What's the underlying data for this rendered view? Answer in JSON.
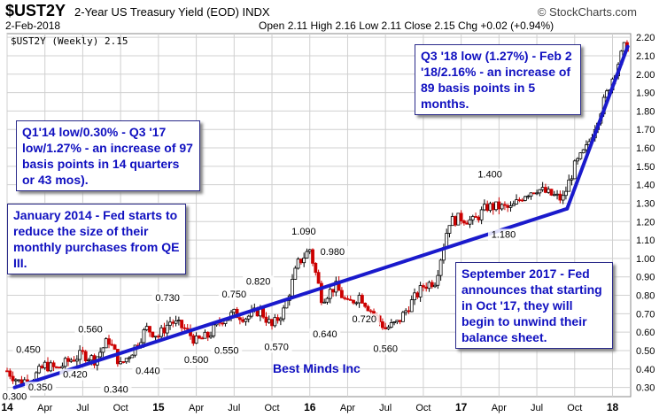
{
  "header": {
    "symbol": "$UST2Y",
    "subtitle": "2-Year US Treasury Yield (EOD)  INDX",
    "brand": "© StockCharts.com",
    "date": "2-Feb-2018",
    "ohlc": "Open 2.11  High 2.16  Low 2.11  Close 2.15  Chg +0.02 (+0.94%)"
  },
  "chart_data": {
    "type": "candlestick",
    "title": "$UST2Y (Weekly) 2.15",
    "x_tick_labels": [
      "14",
      "Apr",
      "Jul",
      "Oct",
      "15",
      "Apr",
      "Jul",
      "Oct",
      "16",
      "Apr",
      "Jul",
      "Oct",
      "17",
      "Apr",
      "Jul",
      "Oct",
      "18"
    ],
    "x_range": [
      "2014-01",
      "2018-02"
    ],
    "y_range": [
      0.25,
      2.22
    ],
    "y_ticks": [
      0.3,
      0.4,
      0.5,
      0.6,
      0.7,
      0.8,
      0.9,
      1.0,
      1.1,
      1.2,
      1.3,
      1.4,
      1.5,
      1.6,
      1.7,
      1.8,
      1.9,
      2.0,
      2.1,
      2.2
    ],
    "grid": true,
    "axis_side": "right",
    "series": {
      "x": [
        2014.0,
        2014.08,
        2014.17,
        2014.25,
        2014.33,
        2014.42,
        2014.5,
        2014.58,
        2014.67,
        2014.75,
        2014.83,
        2014.92,
        2015.0,
        2015.08,
        2015.17,
        2015.25,
        2015.33,
        2015.42,
        2015.5,
        2015.58,
        2015.67,
        2015.75,
        2015.83,
        2015.92,
        2016.0,
        2016.08,
        2016.17,
        2016.25,
        2016.33,
        2016.42,
        2016.5,
        2016.58,
        2016.67,
        2016.75,
        2016.83,
        2016.92,
        2017.0,
        2017.08,
        2017.17,
        2017.25,
        2017.33,
        2017.42,
        2017.5,
        2017.58,
        2017.67,
        2017.75,
        2017.83,
        2017.92,
        2018.0,
        2018.08
      ],
      "y": [
        0.39,
        0.33,
        0.35,
        0.42,
        0.4,
        0.45,
        0.48,
        0.45,
        0.56,
        0.42,
        0.5,
        0.62,
        0.58,
        0.66,
        0.62,
        0.55,
        0.58,
        0.67,
        0.7,
        0.68,
        0.72,
        0.63,
        0.72,
        0.97,
        1.05,
        0.78,
        0.85,
        0.75,
        0.8,
        0.7,
        0.62,
        0.65,
        0.76,
        0.85,
        0.88,
        1.2,
        1.22,
        1.2,
        1.28,
        1.28,
        1.27,
        1.35,
        1.38,
        1.35,
        1.32,
        1.5,
        1.6,
        1.8,
        1.98,
        2.15
      ]
    },
    "trendlines": [
      {
        "from": [
          2014.05,
          0.3
        ],
        "to": [
          2017.7,
          1.27
        ]
      },
      {
        "from": [
          2017.7,
          1.27
        ],
        "to": [
          2018.1,
          2.15
        ]
      }
    ],
    "point_labels": [
      {
        "text": "0.300",
        "x": 2014.05,
        "y": 0.3,
        "pos": "below"
      },
      {
        "text": "0.450",
        "x": 2014.14,
        "y": 0.45,
        "pos": "above"
      },
      {
        "text": "0.350",
        "x": 2014.22,
        "y": 0.35,
        "pos": "below"
      },
      {
        "text": "0.420",
        "x": 2014.45,
        "y": 0.42,
        "pos": "below"
      },
      {
        "text": "0.340",
        "x": 2014.72,
        "y": 0.34,
        "pos": "below"
      },
      {
        "text": "0.560",
        "x": 2014.55,
        "y": 0.56,
        "pos": "above"
      },
      {
        "text": "0.440",
        "x": 2014.93,
        "y": 0.44,
        "pos": "below"
      },
      {
        "text": "0.730",
        "x": 2015.06,
        "y": 0.73,
        "pos": "above"
      },
      {
        "text": "0.500",
        "x": 2015.25,
        "y": 0.5,
        "pos": "below"
      },
      {
        "text": "0.550",
        "x": 2015.45,
        "y": 0.55,
        "pos": "below"
      },
      {
        "text": "0.750",
        "x": 2015.5,
        "y": 0.75,
        "pos": "above"
      },
      {
        "text": "0.820",
        "x": 2015.66,
        "y": 0.82,
        "pos": "above"
      },
      {
        "text": "0.570",
        "x": 2015.78,
        "y": 0.57,
        "pos": "below"
      },
      {
        "text": "1.090",
        "x": 2015.96,
        "y": 1.09,
        "pos": "above"
      },
      {
        "text": "0.980",
        "x": 2016.15,
        "y": 0.98,
        "pos": "above"
      },
      {
        "text": "0.640",
        "x": 2016.1,
        "y": 0.64,
        "pos": "below"
      },
      {
        "text": "0.720",
        "x": 2016.36,
        "y": 0.72,
        "pos": "below"
      },
      {
        "text": "0.560",
        "x": 2016.5,
        "y": 0.56,
        "pos": "below"
      },
      {
        "text": "1.400",
        "x": 2017.19,
        "y": 1.4,
        "pos": "above"
      },
      {
        "text": "1.180",
        "x": 2017.28,
        "y": 1.18,
        "pos": "below"
      }
    ]
  },
  "annotations": [
    {
      "text": "Q3 '18 low (1.27%) - Feb 2 '18/2.16% - an increase of 89 basis points in 5 months."
    },
    {
      "text": "Q1'14 low/0.30% - Q3 '17 low/1.27% - an increase of 97 basis points in 14 quarters or 43 mos)."
    },
    {
      "text": "January 2014 - Fed starts to reduce the size of their monthly purchases from QE III."
    },
    {
      "text": "September 2017 - Fed announces that starting in Oct '17, they will begin to unwind their balance sheet."
    }
  ],
  "credit": "Best Minds Inc",
  "colors": {
    "up": "#000000",
    "down": "#cc0000",
    "trend": "#1a1acc",
    "grid": "#d0d0d0",
    "text": "#1010c0"
  }
}
